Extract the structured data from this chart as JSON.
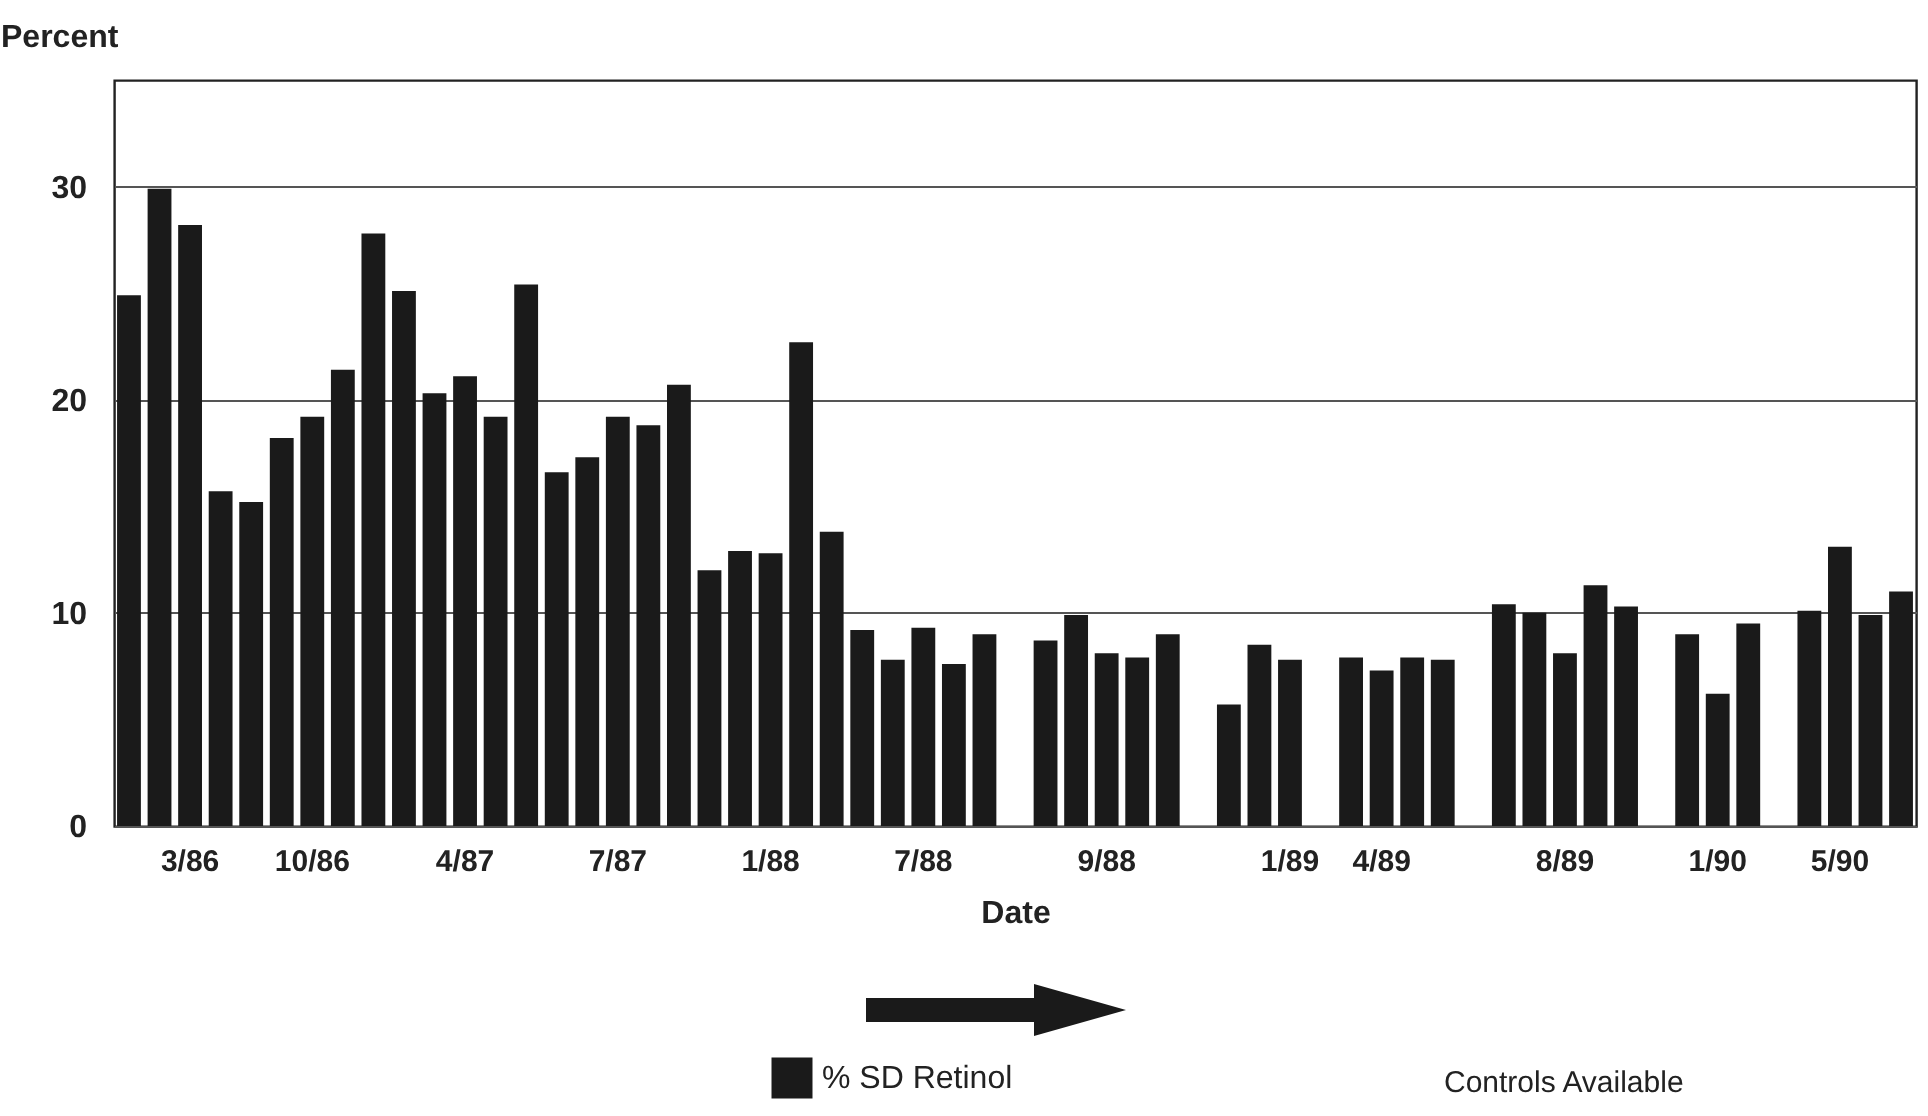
{
  "chart_data": {
    "type": "bar",
    "ylabel": "Percent",
    "xlabel": "Date",
    "categories": [
      null,
      null,
      "3/86",
      null,
      null,
      null,
      "10/86",
      null,
      null,
      null,
      null,
      "4/87",
      null,
      null,
      null,
      null,
      "7/87",
      null,
      null,
      null,
      null,
      "1/88",
      null,
      null,
      null,
      null,
      "7/88",
      null,
      null,
      null,
      null,
      null,
      "9/88",
      null,
      null,
      null,
      null,
      null,
      "1/89",
      null,
      null,
      "4/89",
      null,
      null,
      null,
      null,
      null,
      "8/89",
      null,
      null,
      null,
      null,
      "1/90",
      null,
      null,
      null,
      "5/90",
      null,
      null
    ],
    "series": [
      {
        "name": "% SD Retinol",
        "color": "#1a1a1a",
        "values": [
          24.9,
          29.9,
          28.2,
          15.7,
          15.2,
          18.2,
          19.2,
          21.4,
          27.8,
          25.1,
          20.3,
          21.1,
          19.2,
          25.4,
          16.6,
          17.3,
          19.2,
          18.8,
          20.7,
          12.0,
          12.9,
          12.8,
          22.7,
          13.8,
          9.2,
          7.8,
          9.3,
          7.6,
          9.0,
          null,
          8.7,
          9.9,
          8.1,
          7.9,
          9.0,
          null,
          5.7,
          8.5,
          7.8,
          null,
          7.9,
          7.3,
          7.9,
          7.8,
          null,
          10.4,
          10.0,
          8.1,
          11.3,
          10.3,
          null,
          9.0,
          6.2,
          9.5,
          null,
          10.1,
          13.1,
          9.9,
          11.0
        ]
      }
    ],
    "ylim": [
      0,
      35
    ],
    "yticks": [
      0,
      10,
      20,
      30
    ],
    "grid": "y",
    "legend": "bottom",
    "annotations": [
      "Controls Available"
    ]
  }
}
